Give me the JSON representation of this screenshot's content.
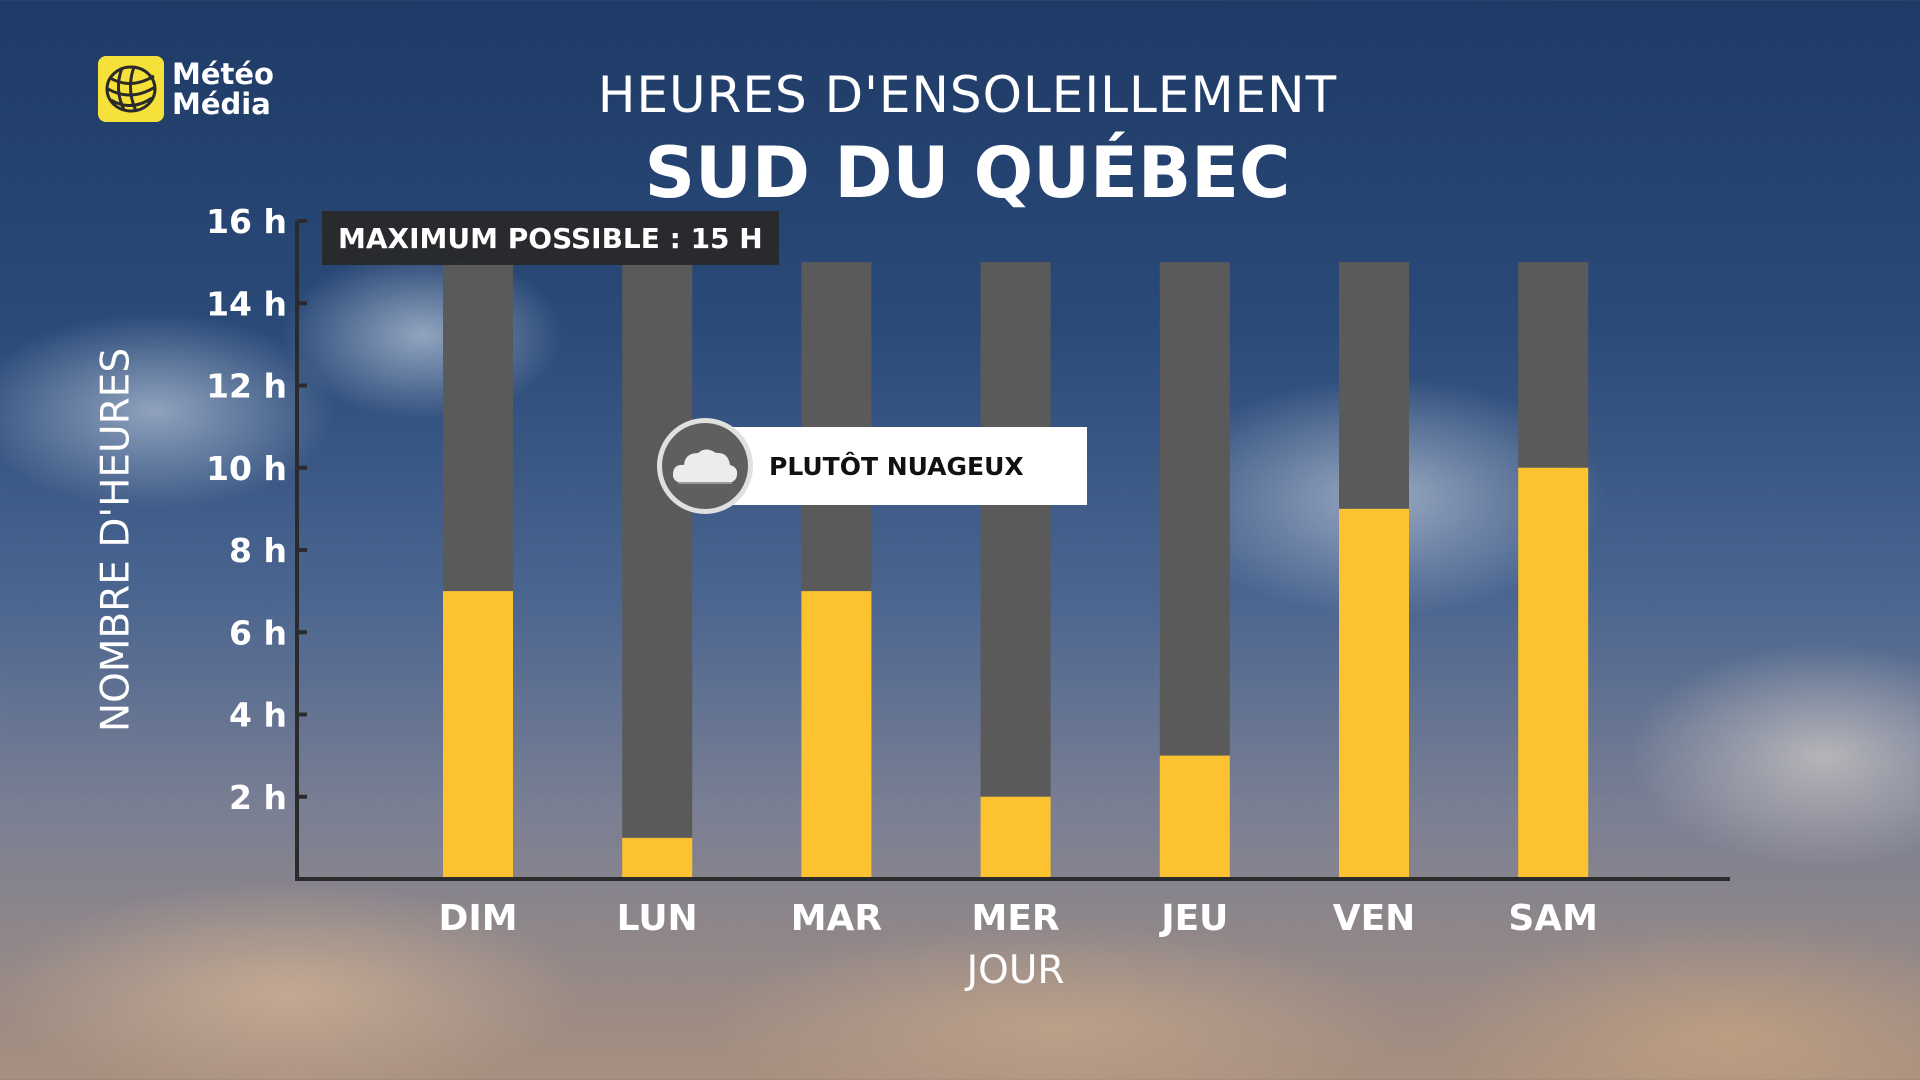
{
  "logo": {
    "line1": "Météo",
    "line2": "Média",
    "icon": "meteomedia-globe-icon"
  },
  "title": "HEURES D'ENSOLEILLEMENT",
  "subtitle": "SUD DU QUÉBEC",
  "max_label": "MAXIMUM POSSIBLE : 15 H",
  "annotation": {
    "text": "PLUTÔT NUAGEUX",
    "icon": "cloud-icon",
    "day": "LUN"
  },
  "colors": {
    "sun": "#fcc22f",
    "remaining": "#5a5a5a",
    "axis": "#2b2b2b"
  },
  "chart_data": {
    "type": "bar",
    "stacked": true,
    "title": "HEURES D'ENSOLEILLEMENT",
    "subtitle": "SUD DU QUÉBEC",
    "xlabel": "JOUR",
    "ylabel": "NOMBRE D'HEURES",
    "categories": [
      "DIM",
      "LUN",
      "MAR",
      "MER",
      "JEU",
      "VEN",
      "SAM"
    ],
    "series": [
      {
        "values": [
          7,
          1,
          7,
          2,
          3,
          9,
          10
        ]
      },
      {
        "values": [
          8,
          14,
          8,
          13,
          12,
          6,
          5
        ]
      }
    ],
    "max_possible": 15,
    "ylim": [
      0,
      16
    ],
    "yticks": [
      2,
      4,
      6,
      8,
      10,
      12,
      14,
      16
    ],
    "ytick_labels": [
      "2 h",
      "4 h",
      "6 h",
      "8 h",
      "10 h",
      "12 h",
      "14 h",
      "16 h"
    ],
    "grid": false,
    "legend": "none"
  }
}
